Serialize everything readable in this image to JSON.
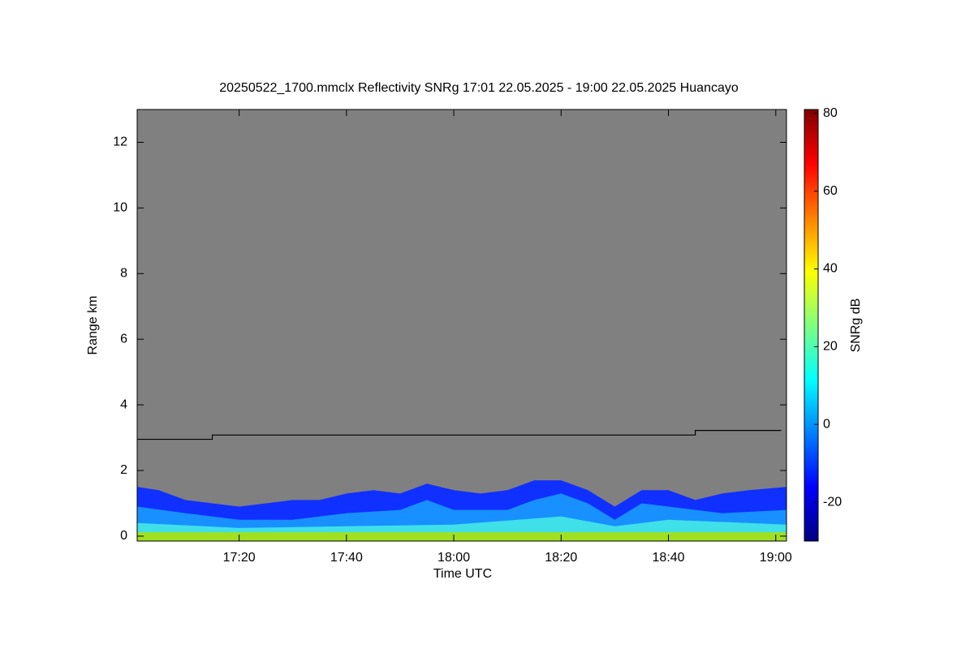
{
  "chart_data": {
    "type": "time-height",
    "title": "20250522_1700.mmclx Reflectivity SNRg   17:01 22.05.2025 - 19:00 22.05.2025 Huancayo",
    "xlabel": "Time UTC",
    "ylabel": "Range km",
    "xlim": [
      "17:01",
      "19:02"
    ],
    "xticks": [
      "17:20",
      "17:40",
      "18:00",
      "18:20",
      "18:40",
      "19:00"
    ],
    "ylim": [
      -0.15,
      13
    ],
    "yticks": [
      0,
      2,
      4,
      6,
      8,
      10,
      12
    ],
    "background": "#808080",
    "colorbar": {
      "label": "SNRg dB",
      "lim": [
        -30,
        81
      ],
      "ticks": [
        -20,
        0,
        20,
        40,
        60,
        80
      ]
    },
    "layers": [
      {
        "color": "#1030ff",
        "x": [
          "17:01",
          "17:05",
          "17:10",
          "17:15",
          "17:20",
          "17:25",
          "17:30",
          "17:35",
          "17:40",
          "17:45",
          "17:50",
          "17:55",
          "18:00",
          "18:05",
          "18:10",
          "18:15",
          "18:20",
          "18:25",
          "18:30",
          "18:35",
          "18:40",
          "18:45",
          "18:50",
          "18:55",
          "19:02"
        ],
        "values": [
          1.5,
          1.4,
          1.1,
          1.0,
          0.9,
          1.0,
          1.1,
          1.1,
          1.3,
          1.4,
          1.3,
          1.6,
          1.4,
          1.3,
          1.4,
          1.7,
          1.7,
          1.4,
          0.9,
          1.4,
          1.4,
          1.1,
          1.3,
          1.4,
          1.5
        ]
      },
      {
        "color": "#1890ff",
        "x": [
          "17:01",
          "17:10",
          "17:20",
          "17:30",
          "17:40",
          "17:50",
          "17:55",
          "18:00",
          "18:10",
          "18:15",
          "18:20",
          "18:25",
          "18:30",
          "18:35",
          "18:40",
          "18:50",
          "19:02"
        ],
        "values": [
          0.9,
          0.7,
          0.5,
          0.5,
          0.7,
          0.8,
          1.1,
          0.8,
          0.8,
          1.1,
          1.3,
          1.0,
          0.5,
          1.0,
          0.9,
          0.7,
          0.8
        ]
      },
      {
        "color": "#40e0e8",
        "x": [
          "17:01",
          "17:20",
          "17:40",
          "18:00",
          "18:20",
          "18:30",
          "18:40",
          "19:02"
        ],
        "values": [
          0.4,
          0.25,
          0.3,
          0.35,
          0.6,
          0.3,
          0.5,
          0.35
        ]
      },
      {
        "color": "#a0e020",
        "x": [
          "17:01",
          "19:02"
        ],
        "values": [
          0.12,
          0.12
        ]
      }
    ],
    "line": {
      "color": "#000000",
      "x": [
        "17:01",
        "17:15",
        "17:15",
        "18:45",
        "18:45",
        "19:01"
      ],
      "values": [
        2.95,
        2.95,
        3.08,
        3.08,
        3.22,
        3.22
      ]
    }
  }
}
